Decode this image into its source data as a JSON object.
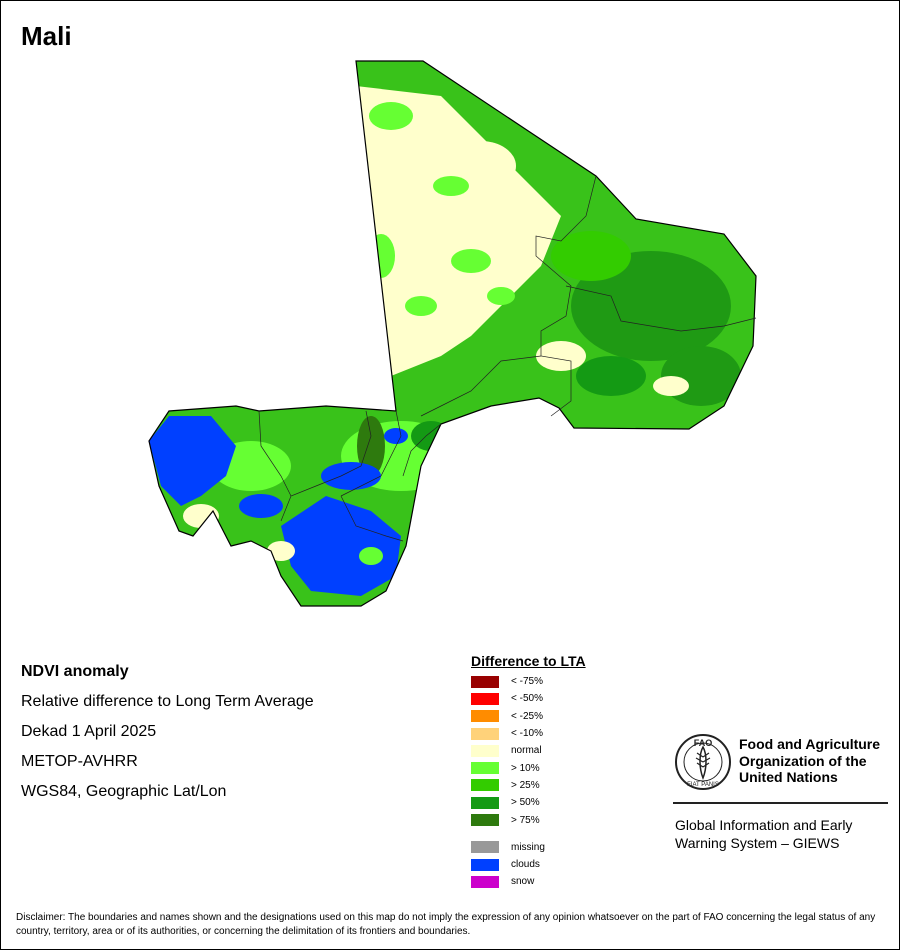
{
  "title": "Mali",
  "info": {
    "product": "NDVI anomaly",
    "description": "Relative difference to Long Term Average",
    "period": "Dekad 1 April 2025",
    "sensor": "METOP-AVHRR",
    "projection": "WGS84, Geographic Lat/Lon"
  },
  "legend": {
    "title": "Difference to LTA",
    "classes": [
      {
        "label": "< -75%",
        "color": "#990000"
      },
      {
        "label": "< -50%",
        "color": "#ff0000"
      },
      {
        "label": "< -25%",
        "color": "#ff8c00"
      },
      {
        "label": "< -10%",
        "color": "#ffd27a"
      },
      {
        "label": "normal",
        "color": "#ffffcc"
      },
      {
        "label": "> 10%",
        "color": "#66ff33"
      },
      {
        "label": "> 25%",
        "color": "#33cc00"
      },
      {
        "label": "> 50%",
        "color": "#149a14"
      },
      {
        "label": "> 75%",
        "color": "#2e7a0e"
      }
    ],
    "other": [
      {
        "label": "missing",
        "color": "#999999"
      },
      {
        "label": "clouds",
        "color": "#0040ff"
      },
      {
        "label": "snow",
        "color": "#cc00cc"
      }
    ]
  },
  "org": {
    "logo_text": "FAO",
    "motto": "FIAT PANIS",
    "name_line1": "Food and Agriculture",
    "name_line2": "Organization of the",
    "name_line3": "United Nations",
    "system_line1": "Global Information and Early",
    "system_line2": "Warning System – GIEWS"
  },
  "disclaimer": "Disclaimer: The boundaries and names shown and the designations used on this map do not imply the expression of any opinion whatsoever on the part of FAO concerning the legal status of any country, territory, area or of its authorities, or concerning the delimitation of its frontiers and boundaries."
}
